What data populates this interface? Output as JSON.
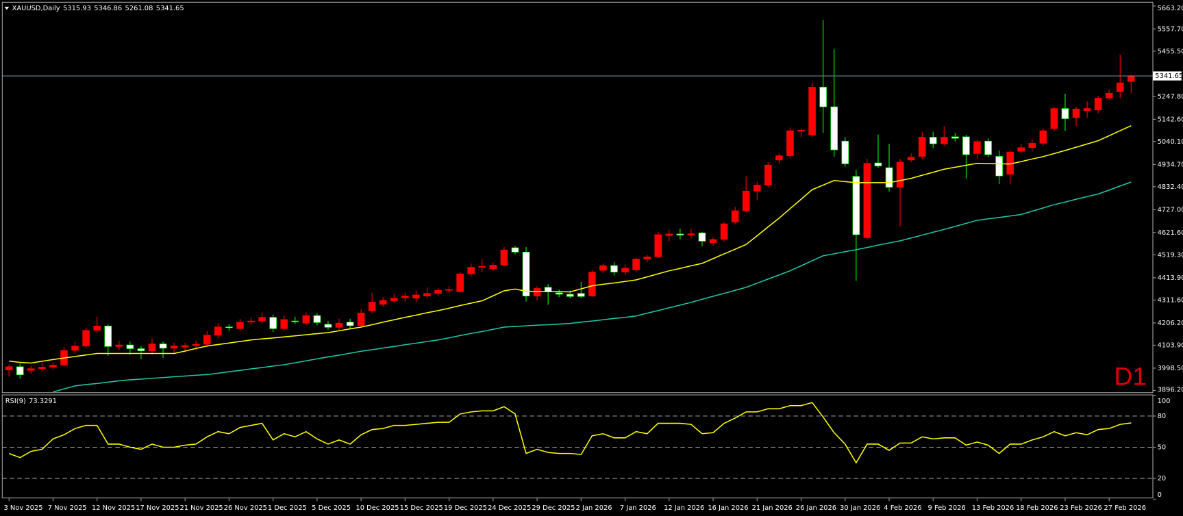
{
  "chart_data": [
    {
      "type": "candlestick",
      "title": "XAUUSD,Daily",
      "annotation": "D1",
      "categories": [
        "3 Nov 2025",
        null,
        null,
        null,
        "7 Nov 2025",
        null,
        null,
        null,
        "12 Nov 2025",
        null,
        null,
        null,
        "17 Nov 2025",
        null,
        null,
        null,
        "21 Nov 2025",
        null,
        null,
        null,
        "26 Nov 2025",
        null,
        null,
        null,
        "1 Dec 2025",
        null,
        null,
        null,
        "5 Dec 2025",
        null,
        null,
        null,
        "10 Dec 2025",
        null,
        null,
        null,
        "15 Dec 2025",
        null,
        null,
        null,
        "19 Dec 2025",
        null,
        null,
        null,
        "24 Dec 2025",
        null,
        null,
        null,
        "29 Dec 2025",
        null,
        null,
        null,
        "2 Jan 2026",
        null,
        null,
        null,
        "7 Jan 2026",
        null,
        null,
        null,
        "12 Jan 2026",
        null,
        null,
        null,
        "16 Jan 2026",
        null,
        null,
        null,
        "21 Jan 2026",
        null,
        null,
        null,
        "26 Jan 2026",
        null,
        null,
        null,
        "30 Jan 2026",
        null,
        null,
        null,
        "4 Feb 2026",
        null,
        null,
        null,
        "9 Feb 2026",
        null,
        null,
        null,
        "13 Feb 2026",
        null,
        null,
        null,
        "18 Feb 2026",
        null,
        null,
        null,
        "23 Feb 2026",
        null,
        null,
        null,
        "27 Feb 2026",
        null,
        null
      ],
      "open": [
        3990,
        4005,
        3988,
        3996,
        4003,
        4012,
        4080,
        4100,
        4172,
        4192,
        4098,
        4105,
        4088,
        4078,
        4110,
        4090,
        4095,
        4102,
        4108,
        4150,
        4188,
        4180,
        4210,
        4215,
        4232,
        4180,
        4215,
        4205,
        4240,
        4200,
        4186,
        4210,
        4194,
        4262,
        4292,
        4308,
        4322,
        4320,
        4330,
        4342,
        4356,
        4350,
        4432,
        4462,
        4455,
        4472,
        4552,
        4532,
        4330,
        4370,
        4345,
        4338,
        4342,
        4330,
        4448,
        4470,
        4440,
        4450,
        4500,
        4510,
        4608,
        4615,
        4610,
        4620,
        4575,
        4590,
        4670,
        4722,
        4812,
        4840,
        4955,
        4975,
        5088,
        5070,
        5290,
        5200,
        5042,
        4880,
        4598,
        4942,
        4920,
        4830,
        4955,
        4972,
        5060,
        5030,
        5062,
        5062,
        4985,
        5042,
        4972,
        4890,
        4995,
        5012,
        5032,
        5100,
        5192,
        5150,
        5182,
        5185,
        5240,
        5270,
        5315.93
      ],
      "high": [
        4015,
        4020,
        4010,
        4025,
        4025,
        4095,
        4120,
        4185,
        4235,
        4200,
        4125,
        4120,
        4100,
        4135,
        4120,
        4115,
        4115,
        4125,
        4170,
        4205,
        4200,
        4225,
        4230,
        4255,
        4245,
        4240,
        4235,
        4255,
        4250,
        4215,
        4225,
        4225,
        4270,
        4345,
        4325,
        4340,
        4345,
        4355,
        4370,
        4365,
        4375,
        4440,
        4480,
        4500,
        4485,
        4555,
        4560,
        4555,
        4375,
        4385,
        4360,
        4355,
        4395,
        4450,
        4480,
        4485,
        4475,
        4505,
        4520,
        4625,
        4635,
        4640,
        4640,
        4625,
        4600,
        4670,
        4740,
        4880,
        4855,
        4945,
        4985,
        5105,
        5100,
        5310,
        5600,
        5465,
        5060,
        4910,
        4960,
        5072,
        5030,
        4960,
        4985,
        5085,
        5085,
        5110,
        5080,
        5070,
        5048,
        5055,
        4998,
        5000,
        5030,
        5050,
        5100,
        5200,
        5260,
        5200,
        5225,
        5250,
        5280,
        5440,
        5346.86
      ],
      "low": [
        3960,
        3950,
        3972,
        3985,
        3990,
        4005,
        4065,
        4090,
        4160,
        4055,
        4080,
        4060,
        4040,
        4060,
        4045,
        4070,
        4070,
        4080,
        4095,
        4135,
        4170,
        4170,
        4195,
        4205,
        4165,
        4170,
        4200,
        4195,
        4195,
        4175,
        4175,
        4180,
        4185,
        4250,
        4280,
        4300,
        4305,
        4300,
        4320,
        4330,
        4345,
        4345,
        4420,
        4440,
        4445,
        4465,
        4520,
        4305,
        4310,
        4290,
        4325,
        4320,
        4320,
        4325,
        4435,
        4425,
        4425,
        4440,
        4485,
        4505,
        4580,
        4590,
        4595,
        4560,
        4560,
        4580,
        4660,
        4715,
        4770,
        4830,
        4940,
        4965,
        5060,
        5060,
        5080,
        4970,
        4925,
        4400,
        4590,
        4920,
        4810,
        4650,
        4945,
        4960,
        5010,
        5020,
        5040,
        4870,
        4960,
        4970,
        4845,
        4845,
        4985,
        4995,
        5020,
        5090,
        5090,
        5110,
        5150,
        5170,
        5230,
        5240,
        5261.08
      ],
      "close": [
        4005,
        3968,
        3996,
        4003,
        4012,
        4080,
        4100,
        4172,
        4192,
        4098,
        4105,
        4088,
        4078,
        4110,
        4090,
        4100,
        4102,
        4108,
        4150,
        4188,
        4185,
        4210,
        4215,
        4232,
        4180,
        4222,
        4212,
        4240,
        4208,
        4186,
        4205,
        4194,
        4252,
        4302,
        4310,
        4320,
        4330,
        4335,
        4342,
        4356,
        4360,
        4432,
        4462,
        4466,
        4472,
        4542,
        4532,
        4330,
        4365,
        4350,
        4338,
        4328,
        4328,
        4440,
        4470,
        4440,
        4458,
        4500,
        4510,
        4612,
        4615,
        4610,
        4616,
        4582,
        4590,
        4662,
        4722,
        4812,
        4840,
        4932,
        4975,
        5090,
        5092,
        5290,
        5200,
        5002,
        4938,
        4612,
        4940,
        4928,
        4830,
        4945,
        4968,
        5060,
        5030,
        5060,
        5055,
        4980,
        5040,
        4980,
        4882,
        4992,
        5012,
        5032,
        5090,
        5192,
        5145,
        5190,
        5192,
        5240,
        5262,
        5310,
        5341.65
      ],
      "up_color": "#ff0000",
      "down_color": "#ffffff",
      "down_wick_color": "#00ff00",
      "series": [
        {
          "color": "#ffff00",
          "values": [
            4031,
            4025,
            4022,
            4030,
            4038,
            4045,
            4052,
            4059,
            4066,
            4066,
            4066,
            4066,
            4066,
            4066,
            4066,
            4066,
            4077,
            4089,
            4100,
            4107,
            4114,
            4121,
            4128,
            4133,
            4137,
            4142,
            4147,
            4152,
            4157,
            4162,
            4170,
            4179,
            4187,
            4198,
            4210,
            4221,
            4232,
            4242,
            4253,
            4263,
            4274,
            4286,
            4297,
            4308,
            4331,
            4354,
            4362,
            4352,
            4351,
            4350,
            4350,
            4349,
            4363,
            4377,
            4384,
            4390,
            4397,
            4404,
            4418,
            4432,
            4446,
            4457,
            4469,
            4480,
            4502,
            4524,
            4545,
            4567,
            4607,
            4648,
            4688,
            4732,
            4775,
            4819,
            4840,
            4861,
            4856,
            4851,
            4851,
            4851,
            4851,
            4861,
            4871,
            4885,
            4899,
            4913,
            4922,
            4931,
            4940,
            4939,
            4938,
            4937,
            4948,
            4960,
            4971,
            4985,
            4999,
            5014,
            5029,
            5044,
            5067,
            5090,
            5113
          ]
        },
        {
          "color": "#20c8a8",
          "values": [
            null,
            null,
            null,
            null,
            3889,
            3903,
            3917,
            3923,
            3928,
            3934,
            3940,
            3945,
            3948,
            3952,
            3955,
            3959,
            3962,
            3966,
            3969,
            3975,
            3982,
            3988,
            3995,
            4001,
            4008,
            4014,
            4023,
            4032,
            4041,
            4050,
            4058,
            4067,
            4076,
            4083,
            4091,
            4098,
            4106,
            4113,
            4121,
            4128,
            4138,
            4148,
            4158,
            4167,
            4177,
            4187,
            4190,
            4193,
            4196,
            4198,
            4201,
            4204,
            4210,
            4215,
            4221,
            4227,
            4232,
            4238,
            4251,
            4263,
            4276,
            4288,
            4301,
            4315,
            4329,
            4342,
            4356,
            4370,
            4389,
            4408,
            4427,
            4446,
            4469,
            4492,
            4515,
            4524,
            4534,
            4543,
            4553,
            4564,
            4574,
            4584,
            4597,
            4610,
            4623,
            4636,
            4650,
            4664,
            4678,
            4685,
            4691,
            4698,
            4705,
            4720,
            4735,
            4750,
            4762,
            4775,
            4787,
            4799,
            4817,
            4836,
            4854
          ]
        }
      ],
      "ylim": [
        3896.2,
        5663.2
      ],
      "yticks": [
        {
          "value": 3896.2,
          "label": "3896.20"
        },
        {
          "value": 3998.5,
          "label": "3998.50"
        },
        {
          "value": 4103.9,
          "label": "4103.90"
        },
        {
          "value": 4206.2,
          "label": "4206.20"
        },
        {
          "value": 4311.6,
          "label": "4311.60"
        },
        {
          "value": 4413.9,
          "label": "4413.90"
        },
        {
          "value": 4519.3,
          "label": "4519.30"
        },
        {
          "value": 4621.6,
          "label": "4621.60"
        },
        {
          "value": 4727,
          "label": "4727.00"
        },
        {
          "value": 4832.4,
          "label": "4832.40"
        },
        {
          "value": 4934.7,
          "label": "4934.70"
        },
        {
          "value": 5040.1,
          "label": "5040.10"
        },
        {
          "value": 5142.6,
          "label": "5142.60"
        },
        {
          "value": 5247.8,
          "label": "5247.80"
        },
        {
          "value": 5455.5,
          "label": "5455.50"
        },
        {
          "value": 5557.7,
          "label": "5557.70"
        },
        {
          "value": 5663.2,
          "label": "5663.20"
        }
      ],
      "price_line": true,
      "grid": false
    },
    {
      "type": "line",
      "title": "RSI(9)",
      "series": [
        {
          "color": "#ffff00",
          "values": [
            44,
            40,
            46,
            48,
            58,
            62,
            68,
            71,
            71,
            53,
            53,
            50,
            48,
            53,
            50,
            50,
            52,
            53,
            60,
            65,
            63,
            69,
            71,
            73,
            57,
            63,
            60,
            65,
            58,
            53,
            57,
            53,
            62,
            67,
            68,
            71,
            71,
            72,
            73,
            74,
            74,
            82,
            84,
            85,
            85,
            89,
            82,
            44,
            48,
            45,
            44,
            44,
            43,
            61,
            63,
            59,
            59,
            65,
            63,
            73,
            73,
            73,
            72,
            63,
            64,
            73,
            78,
            84,
            84,
            87,
            87,
            90,
            90,
            93,
            79,
            64,
            53,
            35,
            53,
            53,
            47,
            54,
            54,
            60,
            58,
            59,
            59,
            52,
            55,
            52,
            44,
            53,
            53,
            57,
            60,
            65,
            61,
            64,
            62,
            67,
            68,
            72,
            73.3291
          ]
        }
      ],
      "ylim": [
        0,
        100
      ],
      "yticks": [
        0,
        20,
        50,
        80,
        100
      ],
      "dashed_levels": true
    }
  ]
}
